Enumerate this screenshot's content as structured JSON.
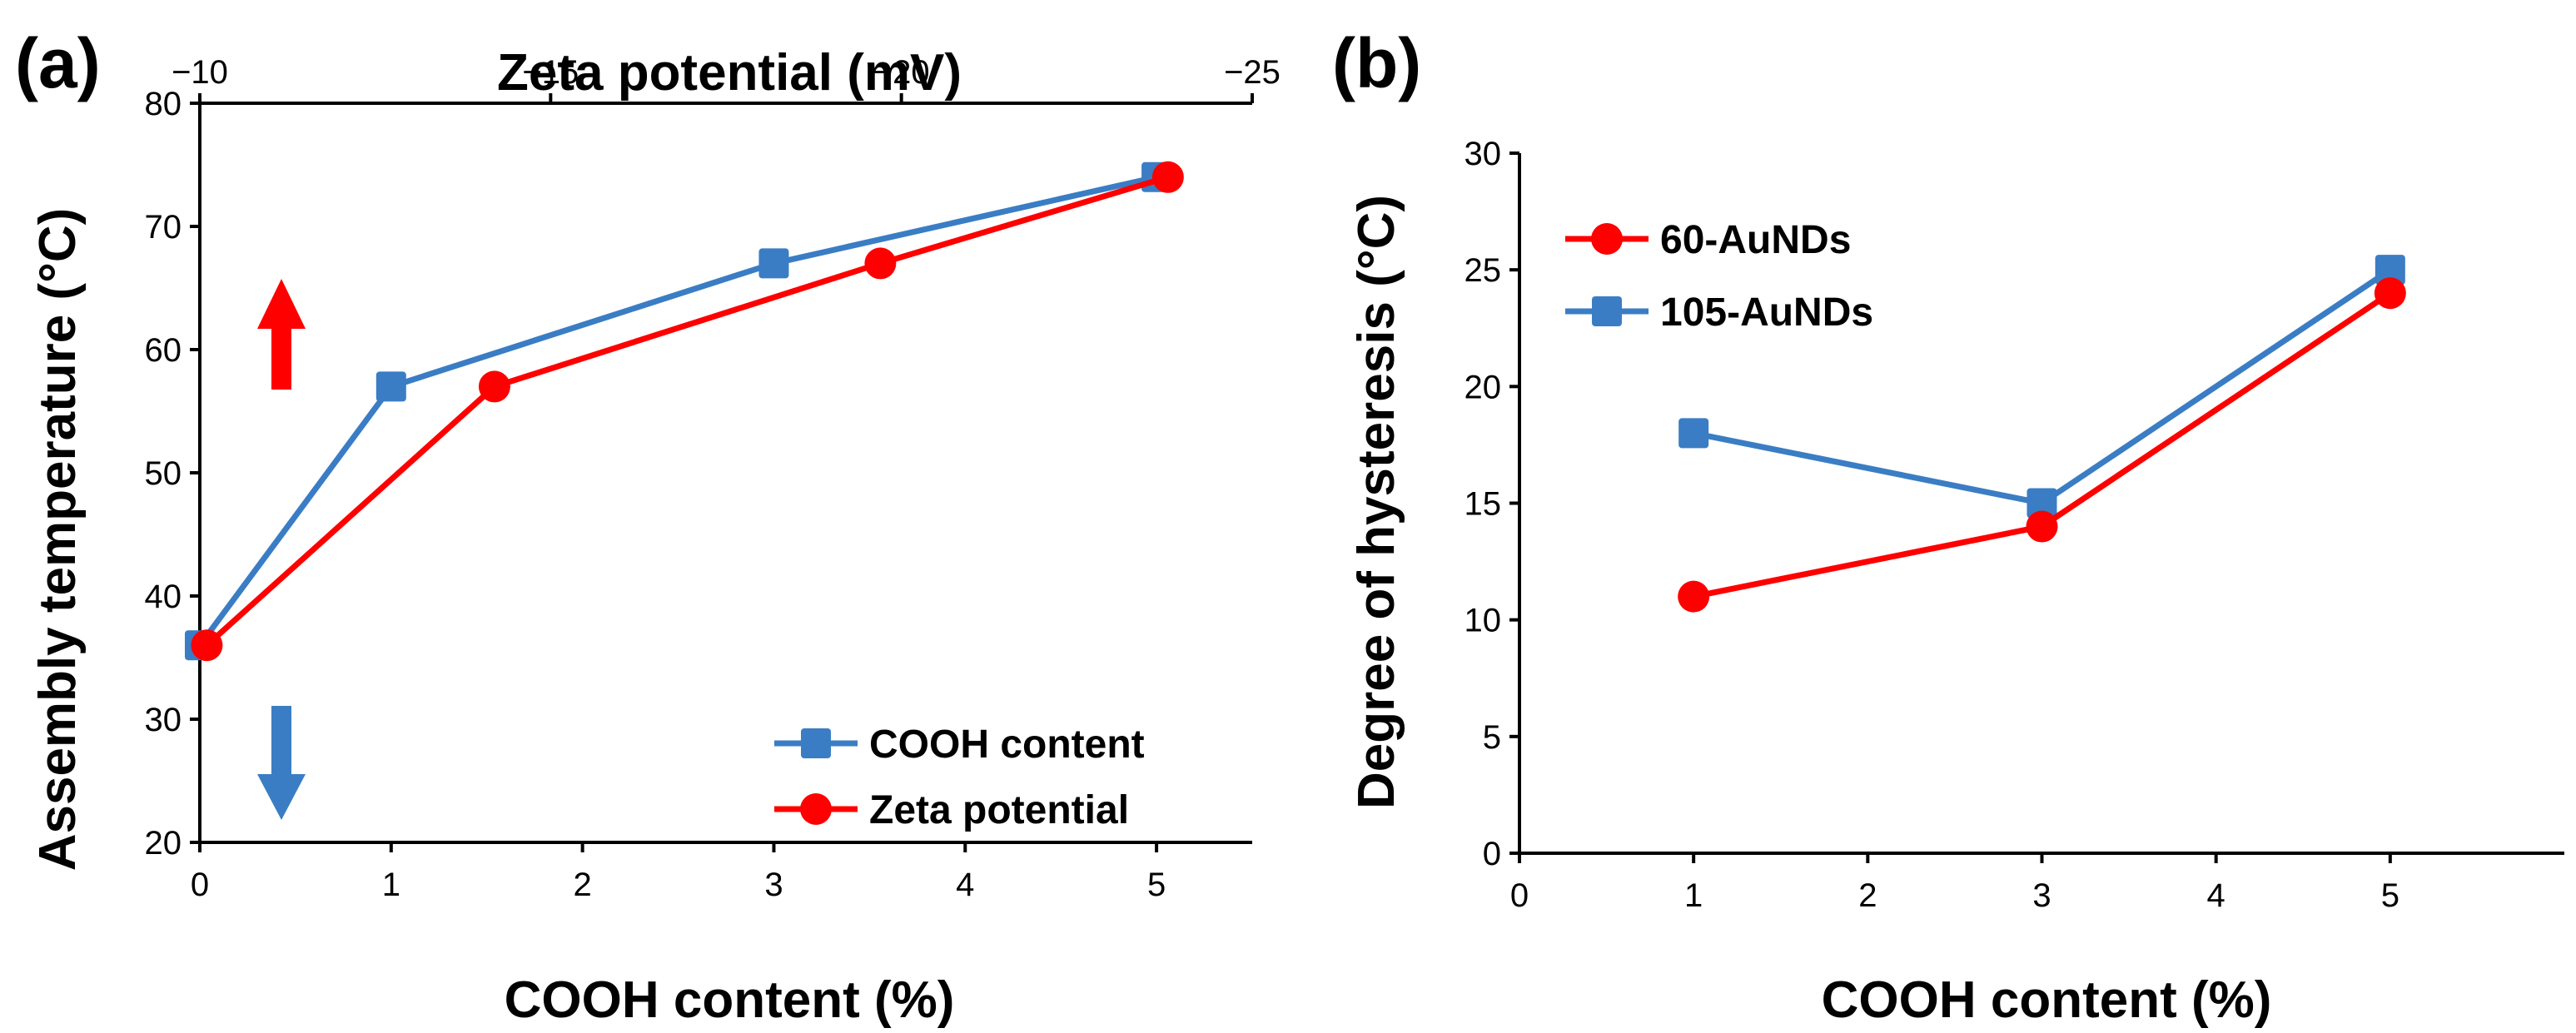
{
  "chart_data": [
    {
      "panel": "(a)",
      "type": "line",
      "xlabel": "COOH content (%)",
      "ylabel": "Assembly temperature (°C)",
      "top_xlabel": "Zeta potential (mV)",
      "xlim": [
        0,
        5.5
      ],
      "ylim": [
        20,
        80
      ],
      "top_xlim": [
        -10,
        -25
      ],
      "x_ticks": [
        "0",
        "1",
        "2",
        "3",
        "4",
        "5"
      ],
      "y_ticks": [
        "20",
        "30",
        "40",
        "50",
        "60",
        "70",
        "80"
      ],
      "top_x_ticks": [
        "−10",
        "−15",
        "−20",
        "−25"
      ],
      "top_x_tick_values": [
        -10,
        -15,
        -20,
        -25
      ],
      "series": [
        {
          "name": "COOH content",
          "axis": "bottom",
          "color": "#3a7dc4",
          "marker": "square",
          "x": [
            0,
            1,
            3,
            5
          ],
          "y": [
            36,
            57,
            67,
            74
          ]
        },
        {
          "name": "Zeta potential",
          "axis": "top",
          "color": "#ff0000",
          "marker": "circle",
          "x": [
            -10.1,
            -14.2,
            -19.7,
            -23.8
          ],
          "y": [
            36,
            57,
            67,
            74
          ]
        }
      ],
      "annotations": [
        {
          "type": "arrow-up",
          "color": "#ff0000"
        },
        {
          "type": "arrow-down",
          "color": "#3a7dc4"
        }
      ],
      "legend_position": "bottom-right"
    },
    {
      "panel": "(b)",
      "type": "line",
      "xlabel": "COOH content (%)",
      "ylabel": "Degree of hysteresis (°C)",
      "xlim": [
        0,
        6
      ],
      "ylim": [
        0,
        30
      ],
      "x_ticks": [
        "0",
        "1",
        "2",
        "3",
        "4",
        "5"
      ],
      "y_ticks": [
        "0",
        "5",
        "10",
        "15",
        "20",
        "25",
        "30"
      ],
      "series": [
        {
          "name": "60-AuNDs",
          "color": "#ff0000",
          "marker": "circle",
          "x": [
            1,
            3,
            5
          ],
          "y": [
            11,
            14,
            24
          ]
        },
        {
          "name": "105-AuNDs",
          "color": "#3a7dc4",
          "marker": "square",
          "x": [
            1,
            3,
            5
          ],
          "y": [
            18,
            15,
            25
          ]
        }
      ],
      "legend_position": "top-left"
    }
  ]
}
